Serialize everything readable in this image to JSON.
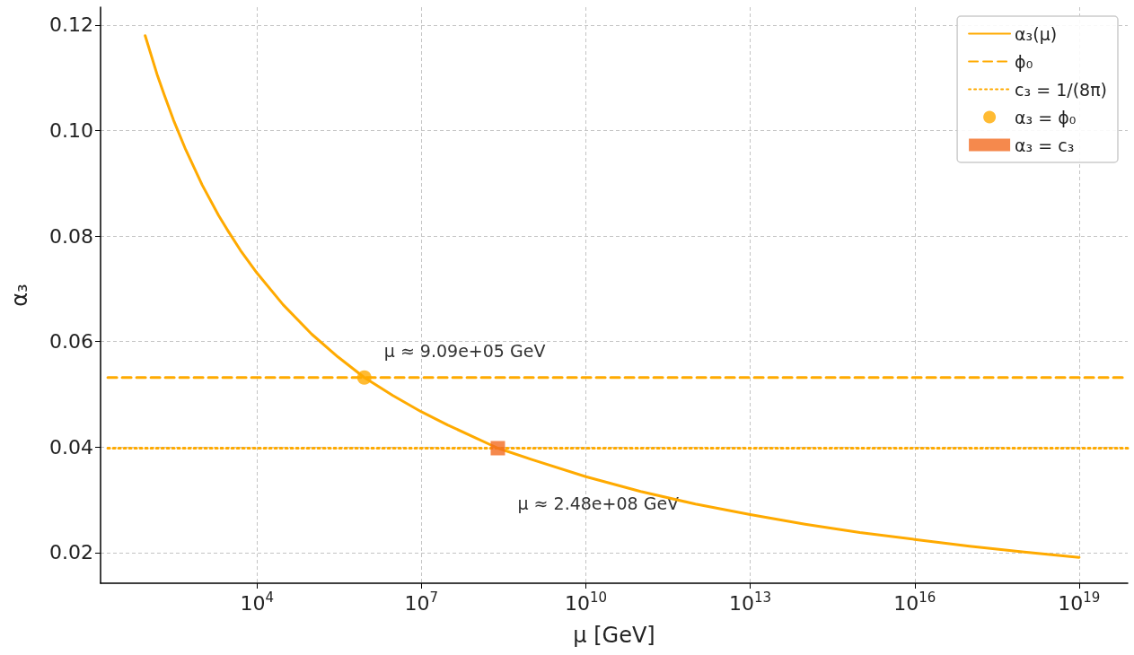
{
  "chart_data": {
    "type": "line",
    "xlabel": "μ [GeV]",
    "ylabel": "α₃",
    "log": "x",
    "xlim": [
      14,
      7.7e+19
    ],
    "ylim": [
      0.0142,
      0.1234
    ],
    "xticks": [
      {
        "value": 10000.0,
        "label": "10$^{4}$"
      },
      {
        "value": 10000000.0,
        "label": "10$^{7}$"
      },
      {
        "value": 10000000000.0,
        "label": "10$^{10}$"
      },
      {
        "value": 10000000000000.0,
        "label": "10$^{13}$"
      },
      {
        "value": 1e+16,
        "label": "10$^{16}$"
      },
      {
        "value": 1e+19,
        "label": "10$^{19}$"
      }
    ],
    "yticks": [
      0.02,
      0.04,
      0.06,
      0.08,
      {
        "value": 0.1,
        "label": "0.10"
      },
      0.12
    ],
    "grid": true,
    "legend": "top right",
    "series": [
      {
        "name": "α₃(μ)",
        "type": "line",
        "color": "#ffaa00",
        "line_style": "solid",
        "marker": "none",
        "x": [
          91.19,
          150,
          200,
          300,
          500,
          1000,
          2000,
          3000,
          5000,
          10000,
          30000,
          100000,
          300000,
          909000,
          3000000.0,
          10000000.0,
          30000000.0,
          100000000.0,
          248000000.0,
          1000000000.0,
          10000000000.0,
          100000000000.0,
          1000000000000.0,
          10000000000000.0,
          100000000000000.0,
          1000000000000000.0,
          1e+16,
          1e+17,
          1e+18,
          1e+19
        ],
        "values": [
          0.118,
          0.1107,
          0.107,
          0.102,
          0.0964,
          0.0897,
          0.0839,
          0.0809,
          0.0773,
          0.073,
          0.067,
          0.0614,
          0.0571,
          0.0532,
          0.0498,
          0.0467,
          0.0442,
          0.0417,
          0.0398,
          0.0377,
          0.0344,
          0.0316,
          0.0292,
          0.0272,
          0.0254,
          0.0238,
          0.0225,
          0.0212,
          0.0201,
          0.0191
        ]
      },
      {
        "name": "ϕ₀",
        "type": "line",
        "color": "#ffaa00",
        "line_style": "dashed",
        "marker": "none",
        "x": [
          19,
          7.7e+19
        ],
        "values": [
          0.0532,
          0.0532
        ]
      },
      {
        "name": "c₃ = 1/(8π)",
        "type": "line",
        "color": "#ffaa00",
        "line_style": "dotted",
        "marker": "none",
        "x": [
          19,
          7.7e+19
        ],
        "values": [
          0.0398,
          0.0398
        ]
      },
      {
        "name": "α₃ = ϕ₀",
        "type": "scatter",
        "color": "#ffaa00",
        "marker": "circle",
        "x": [
          909000
        ],
        "values": [
          0.0532
        ]
      },
      {
        "name": "α₃ = c₃",
        "type": "scatter",
        "color": "#f26b21",
        "marker": "square",
        "x": [
          248000000.0
        ],
        "values": [
          0.0398
        ]
      }
    ],
    "annotations": [
      {
        "text": "μ ≈ 9.09e+05 GeV",
        "x": 909000,
        "y": 0.0532
      },
      {
        "text": "μ ≈ 2.48e+08 GeV",
        "x": 248000000.0,
        "y": 0.0398
      }
    ]
  }
}
